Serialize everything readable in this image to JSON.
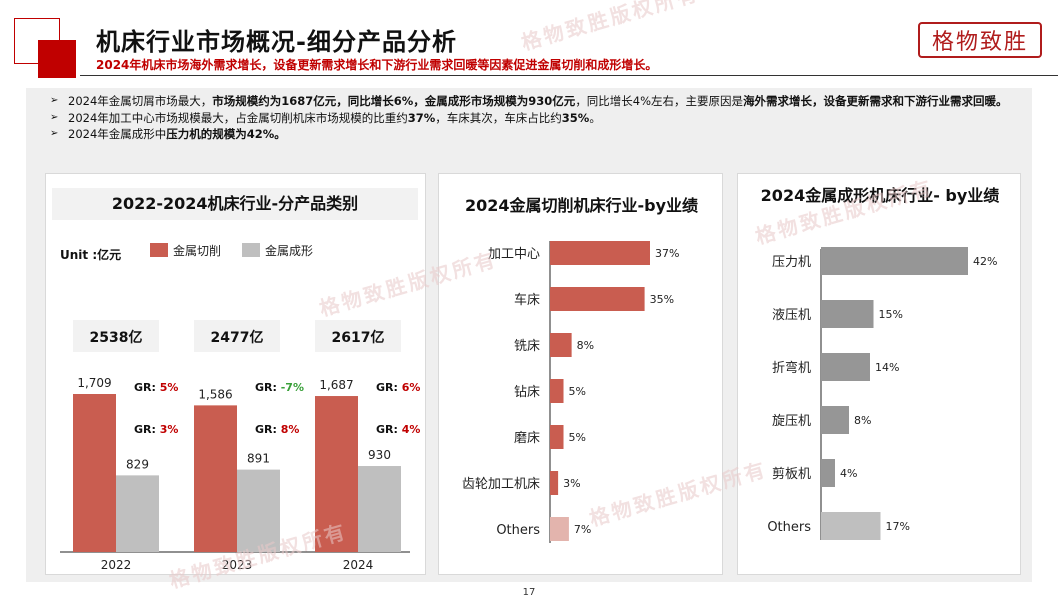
{
  "header": {
    "title": "机床行业市场概况-细分产品分析",
    "subtitle": "2024年机床市场海外需求增长，设备更新需求增长和下游行业需求回暖等因素促进金属切削和成形增长。",
    "brand": "格物致胜"
  },
  "bullets": [
    {
      "parts": [
        {
          "text": "2024年金属切屑市场最大，",
          "bold": false
        },
        {
          "text": "市场规模约为1687亿元，同比增长6%，金属成形市场规模为930亿元",
          "bold": true
        },
        {
          "text": "，同比增长4%左右，主要原因是",
          "bold": false
        },
        {
          "text": "海外需求增长，设备更新需求和下游行业需求回暖。",
          "bold": true
        }
      ]
    },
    {
      "parts": [
        {
          "text": "2024年加工中心市场规模最大，占金属切削机床市场规模的比重约",
          "bold": false
        },
        {
          "text": "37%",
          "bold": true
        },
        {
          "text": "，车床其次，车床占比约",
          "bold": false
        },
        {
          "text": "35%",
          "bold": true
        },
        {
          "text": "。",
          "bold": false
        }
      ]
    },
    {
      "parts": [
        {
          "text": "2024年金属成形中",
          "bold": false
        },
        {
          "text": "压力机的规模为42%。",
          "bold": true
        }
      ]
    }
  ],
  "watermark": "格物致胜版权所有",
  "page_number": "17",
  "colors": {
    "accent": "#c00000",
    "bar_red": "#c95d50",
    "bar_gray": "#bfbfbf",
    "bar_dark_gray": "#969696",
    "growth_red": "#c00000",
    "growth_green": "#3aa03a"
  },
  "chart_data": [
    {
      "type": "bar",
      "title": "2022-2024机床行业-分产品类别",
      "unit_label": "Unit :亿元",
      "categories": [
        "2022",
        "2023",
        "2024"
      ],
      "series": [
        {
          "name": "金属切削",
          "values": [
            1709,
            1586,
            1687
          ],
          "labels": [
            "1,709",
            "1,586",
            "1,687"
          ]
        },
        {
          "name": "金属成形",
          "values": [
            829,
            891,
            930
          ],
          "labels": [
            "829",
            "891",
            "930"
          ]
        }
      ],
      "totals": [
        "2538亿",
        "2477亿",
        "2617亿"
      ],
      "growth": [
        {
          "cutting": "5%",
          "forming": "3%"
        },
        {
          "cutting": "-7%",
          "forming": "8%"
        },
        {
          "cutting": "6%",
          "forming": "4%"
        }
      ],
      "growth_label": "GR:",
      "legend_position": "top",
      "grid": false
    },
    {
      "type": "bar",
      "orientation": "horizontal",
      "title": "2024金属切削机床行业-by业绩",
      "categories": [
        "加工中心",
        "车床",
        "铣床",
        "钻床",
        "磨床",
        "齿轮加工机床",
        "Others"
      ],
      "values": [
        37,
        35,
        8,
        5,
        5,
        3,
        7
      ],
      "labels": [
        "37%",
        "35%",
        "8%",
        "5%",
        "5%",
        "3%",
        "7%"
      ],
      "grid": false
    },
    {
      "type": "bar",
      "orientation": "horizontal",
      "title": "2024金属成形机床行业- by业绩",
      "categories": [
        "压力机",
        "液压机",
        "折弯机",
        "旋压机",
        "剪板机",
        "Others"
      ],
      "values": [
        42,
        15,
        14,
        8,
        4,
        17
      ],
      "labels": [
        "42%",
        "15%",
        "14%",
        "8%",
        "4%",
        "17%"
      ],
      "grid": false
    }
  ]
}
